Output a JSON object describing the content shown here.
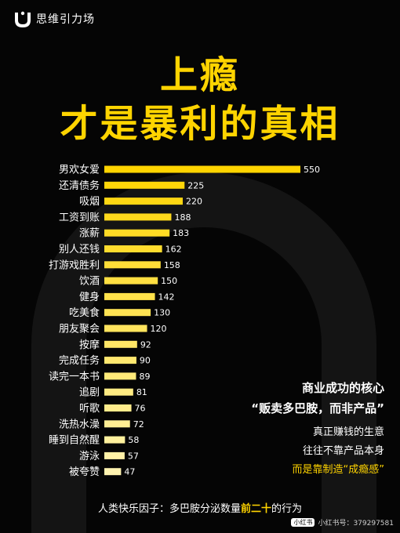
{
  "brand": {
    "name": "思维引力场"
  },
  "title": {
    "line1": "上瘾",
    "line2": "才是暴利的真相"
  },
  "colors": {
    "accent": "#ffd400",
    "bar_light": "#fff3b0",
    "background": "#050505"
  },
  "chart_data": {
    "type": "bar",
    "orientation": "horizontal",
    "categories": [
      "男欢女爱",
      "还清债务",
      "吸烟",
      "工资到账",
      "涨薪",
      "别人还钱",
      "打游戏胜利",
      "饮酒",
      "健身",
      "吃美食",
      "朋友聚会",
      "按摩",
      "完成任务",
      "读完一本书",
      "追剧",
      "听歌",
      "洗热水澡",
      "睡到自然醒",
      "游泳",
      "被夸赞"
    ],
    "values": [
      550,
      225,
      220,
      188,
      183,
      162,
      158,
      150,
      142,
      130,
      120,
      92,
      90,
      89,
      81,
      76,
      72,
      58,
      57,
      47
    ],
    "xlim": [
      0,
      550
    ],
    "grid": false,
    "legend": "none"
  },
  "note": {
    "heading": "商业成功的核心",
    "quote": "“贩卖多巴胺，而非产品”",
    "line1": "真正赚钱的生意",
    "line2": "往往不靠产品本身",
    "line3": "而是靠制造“成瘾感”"
  },
  "footer": {
    "prefix": "人类快乐因子：多巴胺分泌数量",
    "highlight": "前二十",
    "suffix": "的行为"
  },
  "watermark": {
    "badge": "小红书",
    "text": "小红书号：379297581"
  }
}
